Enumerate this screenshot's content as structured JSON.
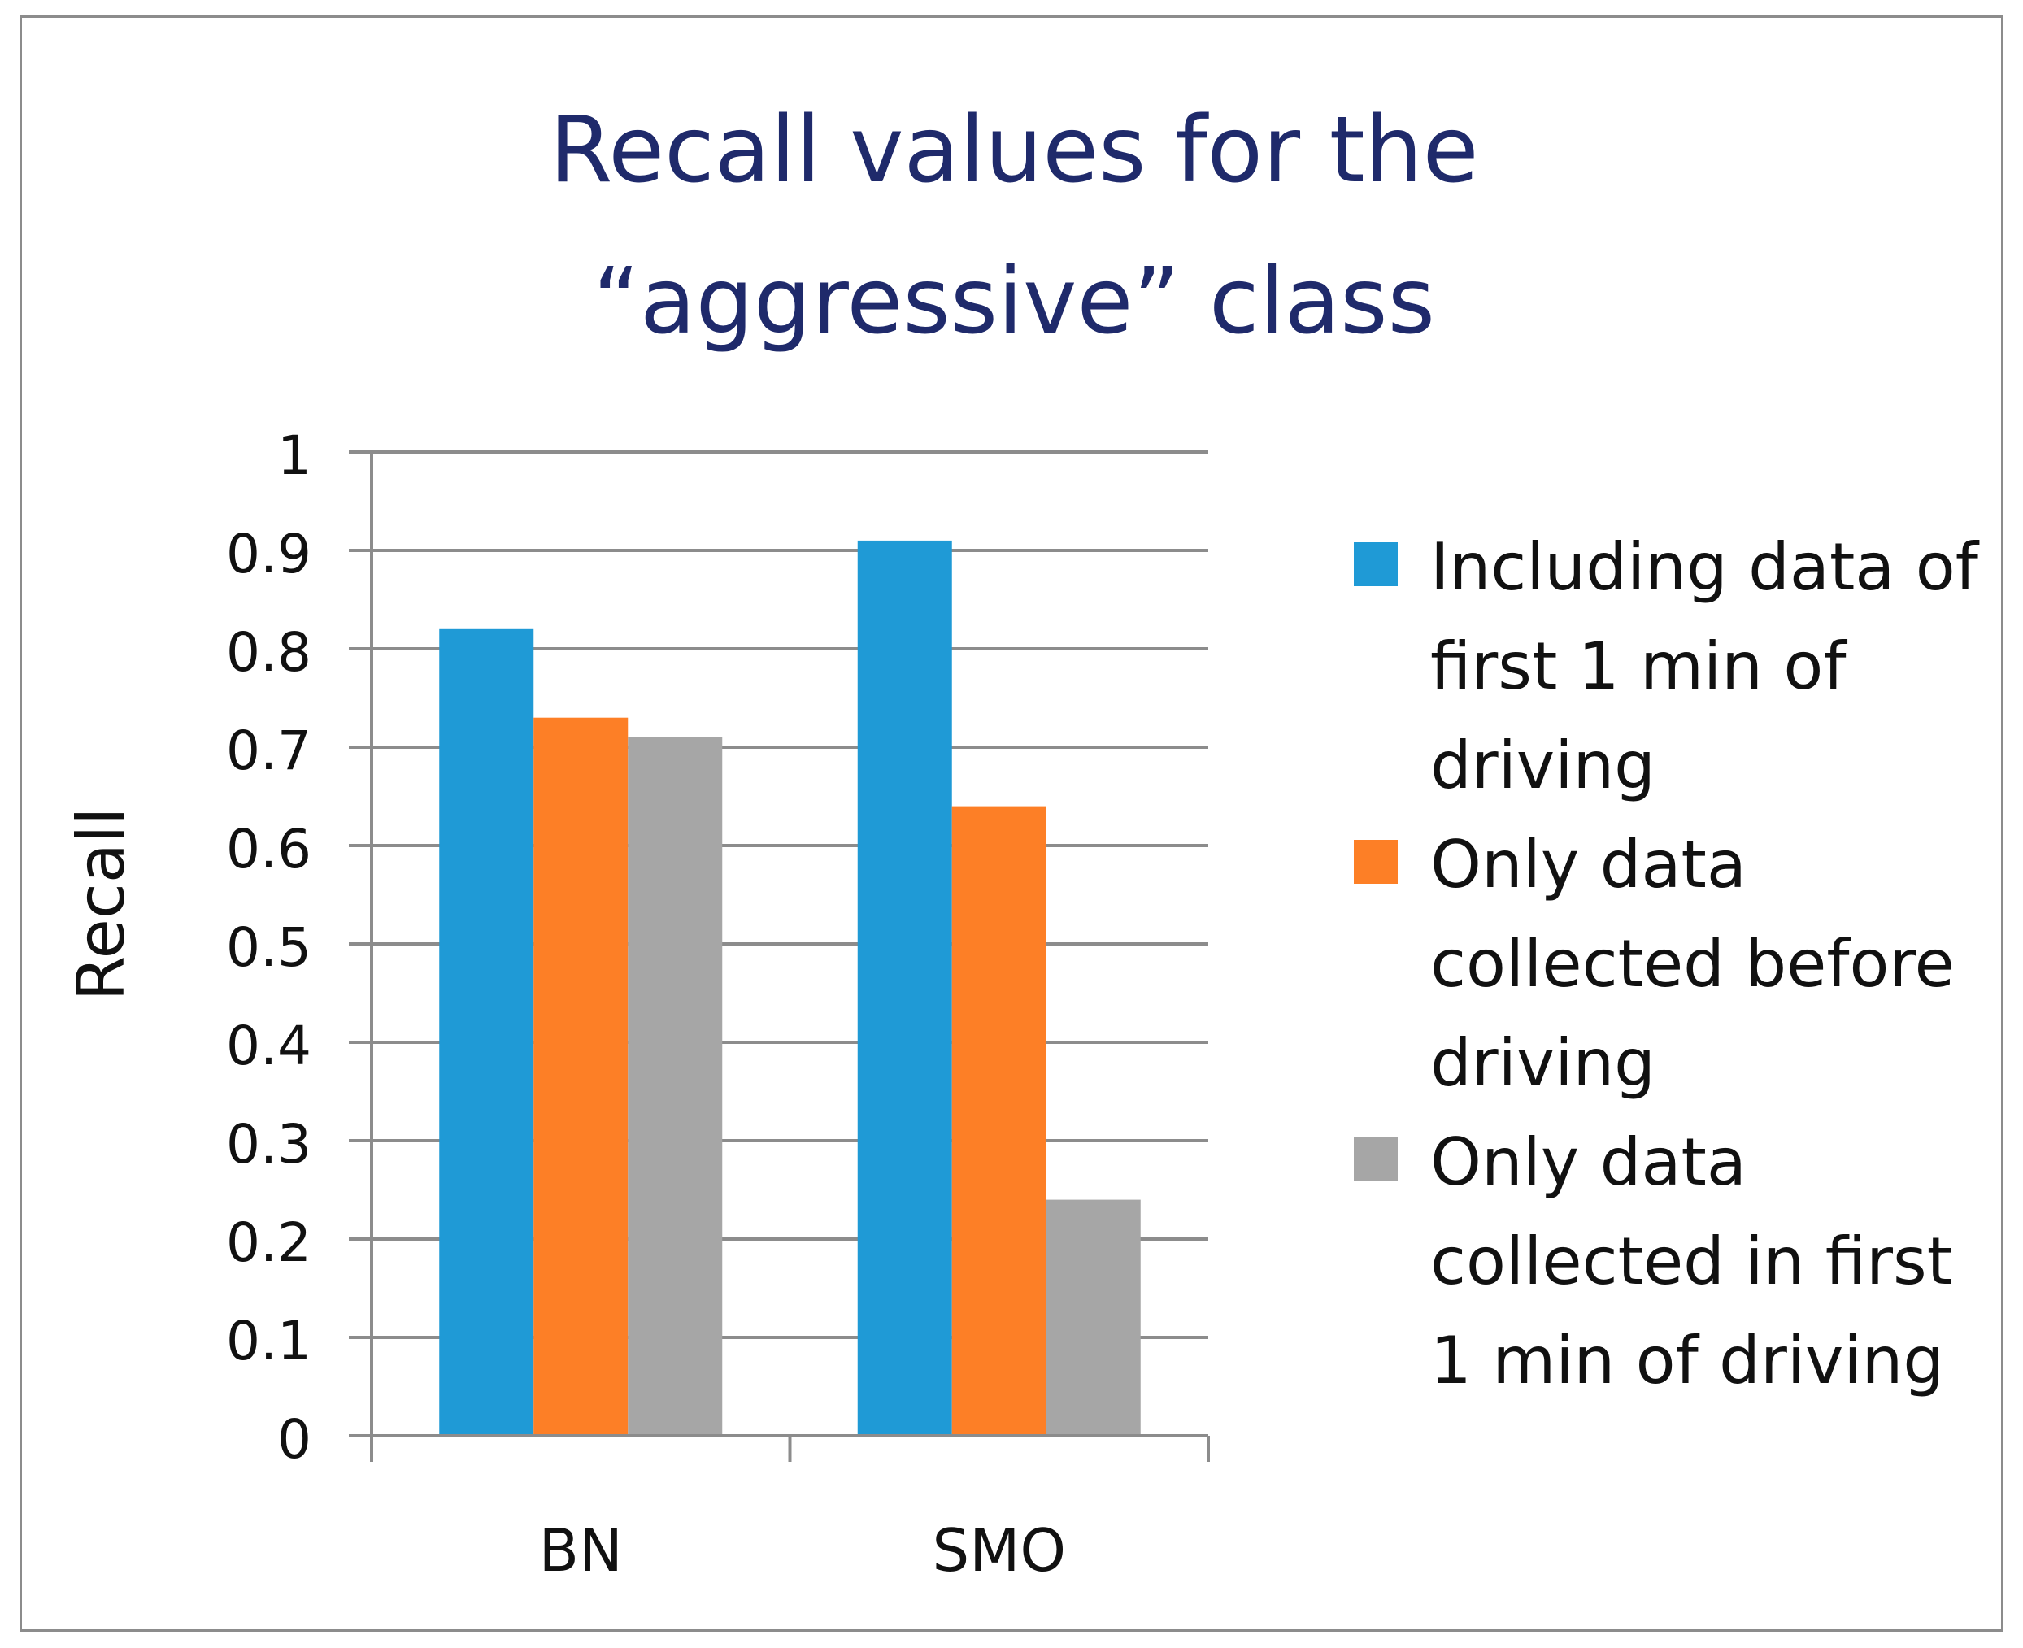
{
  "chart_data": {
    "type": "bar",
    "title_lines": [
      "Recall values for the",
      "“aggressive” class"
    ],
    "xlabel": "",
    "ylabel": "Recall",
    "ylim": [
      0,
      1
    ],
    "yticks": [
      "0",
      "0.1",
      "0.2",
      "0.3",
      "0.4",
      "0.5",
      "0.6",
      "0.7",
      "0.8",
      "0.9",
      "1"
    ],
    "categories": [
      "BN",
      "SMO"
    ],
    "series": [
      {
        "name": "Including data of first 1 min of driving",
        "values": [
          0.82,
          0.91
        ],
        "color": "#1f9ad6"
      },
      {
        "name": "Only data collected before driving",
        "values": [
          0.73,
          0.64
        ],
        "color": "#fd7f26"
      },
      {
        "name": "Only data collected in first 1 min of driving",
        "values": [
          0.71,
          0.24
        ],
        "color": "#a6a6a6"
      }
    ],
    "legend_position": "right",
    "grid": true
  },
  "legend": {
    "labels": [
      "Including data of\nfirst 1 min of\ndriving",
      "Only data\ncollected before\ndriving",
      "Only data\ncollected in first\n1 min of driving"
    ]
  }
}
